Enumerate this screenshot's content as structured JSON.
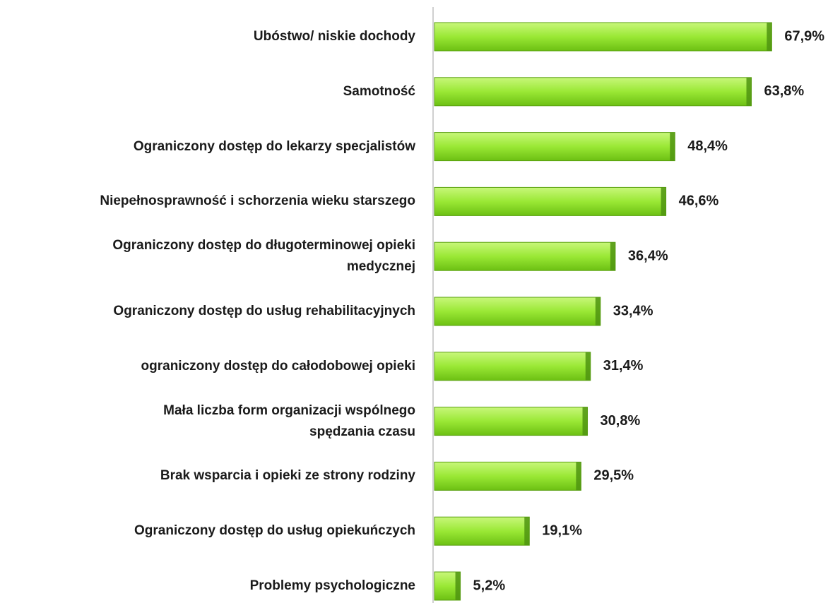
{
  "chart_data": {
    "type": "barh",
    "categories": [
      "Ubóstwo/ niskie dochody",
      "Samotność",
      "Ograniczony dostęp do lekarzy specjalistów",
      "Niepełnosprawność i schorzenia wieku starszego",
      "Ograniczony dostęp do długoterminowej opieki\nmedycznej",
      "Ograniczony dostęp do usług rehabilitacyjnych",
      "ograniczony dostęp do całodobowej opieki",
      "Mała liczba form organizacji wspólnego\nspędzania czasu",
      "Brak wsparcia i opieki ze strony rodziny",
      "Ograniczony dostęp do usług opiekuńczych",
      "Problemy psychologiczne"
    ],
    "values": [
      67.9,
      63.8,
      48.4,
      46.6,
      36.4,
      33.4,
      31.4,
      30.8,
      29.5,
      19.1,
      5.2
    ],
    "value_labels": [
      "67,9%",
      "63,8%",
      "48,4%",
      "46,6%",
      "36,4%",
      "33,4%",
      "31,4%",
      "30,8%",
      "29,5%",
      "19,1%",
      "5,2%"
    ],
    "color": "#92e02c"
  }
}
